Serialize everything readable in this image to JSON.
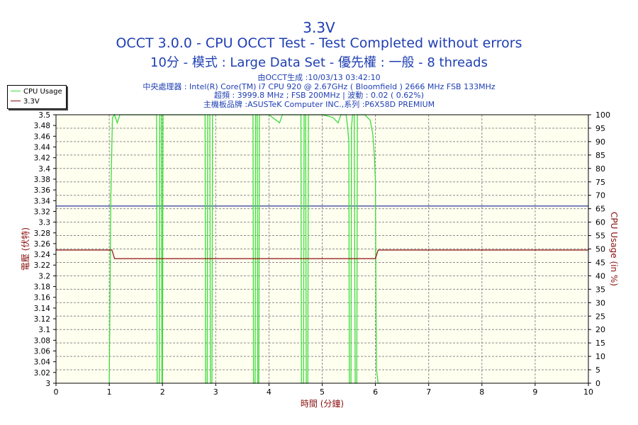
{
  "titles": {
    "main": "3.3V",
    "line2": "OCCT 3.0.0 - CPU OCCT Test - Test Completed without errors",
    "line3": "10分 - 模式 : Large Data Set - 優先權 : 一般 - 8 threads"
  },
  "subtitles": {
    "generated": "由OCCT生成 :10/03/13 03:42:10",
    "cpu": "中央處理器 : Intel(R) Core(TM) i7 CPU 920 @ 2.67GHz ( Bloomfield ) 2666 MHz FSB 133MHz",
    "clock": "超頻 : 3999.8 MHz ; FSB 200MHz | 波動 : 0.02 ( 0.62%)",
    "board": "主機板品牌 :ASUSTeK Computer INC.,系列 :P6X58D PREMIUM"
  },
  "legend": {
    "items": [
      {
        "label": "CPU Usage",
        "color": "#3cdc3c"
      },
      {
        "label": "3.3V",
        "color": "#8b1010"
      }
    ]
  },
  "colors": {
    "plot_bg": "#fffff0",
    "grid": "#8c8c8c",
    "reference_line": "#2b3a9a",
    "axis_label": "#8b1010",
    "title": "#1f3fb3"
  },
  "chart_data": {
    "type": "line",
    "xlabel": "時間 (分鐘)",
    "ylabel_left": "電壓 (伏特)",
    "ylabel_right": "CPU Usage (in %)",
    "xlim": [
      0,
      10
    ],
    "ylim_left": [
      3.0,
      3.5
    ],
    "ylim_right": [
      0,
      100
    ],
    "x_ticks": [
      "0",
      "1",
      "2",
      "3",
      "4",
      "5",
      "6",
      "7",
      "8",
      "9",
      "10"
    ],
    "y_left_ticks": [
      "3.5",
      "3.48",
      "3.46",
      "3.44",
      "3.42",
      "3.4",
      "3.38",
      "3.36",
      "3.34",
      "3.32",
      "3.3",
      "3.28",
      "3.26",
      "3.24",
      "3.22",
      "3.2",
      "3.18",
      "3.16",
      "3.14",
      "3.12",
      "3.1",
      "3.08",
      "3.06",
      "3.04",
      "3.02",
      "3"
    ],
    "y_right_ticks": [
      "100",
      "95",
      "90",
      "85",
      "80",
      "75",
      "70",
      "65",
      "60",
      "55",
      "50",
      "45",
      "40",
      "35",
      "30",
      "25",
      "20",
      "15",
      "10",
      "5",
      "0"
    ],
    "reference_line_value": 3.33,
    "series": [
      {
        "name": "CPU Usage",
        "axis": "right",
        "points": [
          [
            0.99,
            0
          ],
          [
            1.0,
            0
          ],
          [
            1.03,
            70
          ],
          [
            1.06,
            99
          ],
          [
            1.1,
            100
          ],
          [
            1.15,
            97
          ],
          [
            1.2,
            100
          ],
          [
            1.3,
            100
          ],
          [
            1.5,
            100
          ],
          [
            1.7,
            100
          ],
          [
            1.89,
            100
          ],
          [
            1.9,
            0
          ],
          [
            1.94,
            0
          ],
          [
            1.95,
            100
          ],
          [
            1.98,
            100
          ],
          [
            1.99,
            0
          ],
          [
            2.0,
            0
          ],
          [
            2.01,
            100
          ],
          [
            2.2,
            100
          ],
          [
            2.5,
            100
          ],
          [
            2.8,
            100
          ],
          [
            2.81,
            0
          ],
          [
            2.84,
            0
          ],
          [
            2.85,
            100
          ],
          [
            2.89,
            100
          ],
          [
            2.9,
            0
          ],
          [
            2.93,
            0
          ],
          [
            2.94,
            100
          ],
          [
            3.2,
            100
          ],
          [
            3.5,
            100
          ],
          [
            3.7,
            100
          ],
          [
            3.71,
            0
          ],
          [
            3.74,
            0
          ],
          [
            3.75,
            100
          ],
          [
            3.78,
            100
          ],
          [
            3.79,
            0
          ],
          [
            3.81,
            0
          ],
          [
            3.82,
            100
          ],
          [
            4.0,
            100
          ],
          [
            4.2,
            97
          ],
          [
            4.25,
            100
          ],
          [
            4.6,
            100
          ],
          [
            4.61,
            0
          ],
          [
            4.65,
            0
          ],
          [
            4.66,
            100
          ],
          [
            4.69,
            100
          ],
          [
            4.7,
            0
          ],
          [
            4.73,
            0
          ],
          [
            4.74,
            100
          ],
          [
            5.0,
            100
          ],
          [
            5.2,
            99
          ],
          [
            5.3,
            97
          ],
          [
            5.35,
            100
          ],
          [
            5.45,
            100
          ],
          [
            5.48,
            95
          ],
          [
            5.5,
            90
          ],
          [
            5.51,
            0
          ],
          [
            5.54,
            0
          ],
          [
            5.55,
            95
          ],
          [
            5.57,
            100
          ],
          [
            5.6,
            100
          ],
          [
            5.62,
            0
          ],
          [
            5.65,
            0
          ],
          [
            5.66,
            100
          ],
          [
            5.7,
            100
          ],
          [
            5.8,
            100
          ],
          [
            5.9,
            98
          ],
          [
            5.95,
            93
          ],
          [
            5.98,
            85
          ],
          [
            6.0,
            75
          ],
          [
            6.01,
            30
          ],
          [
            6.02,
            5
          ],
          [
            6.05,
            0
          ],
          [
            6.1,
            0
          ]
        ]
      },
      {
        "name": "3.3V",
        "axis": "left",
        "points": [
          [
            0,
            3.248
          ],
          [
            1.0,
            3.248
          ],
          [
            1.05,
            3.248
          ],
          [
            1.1,
            3.232
          ],
          [
            5.95,
            3.232
          ],
          [
            6.0,
            3.232
          ],
          [
            6.05,
            3.248
          ],
          [
            10,
            3.248
          ]
        ]
      }
    ]
  }
}
